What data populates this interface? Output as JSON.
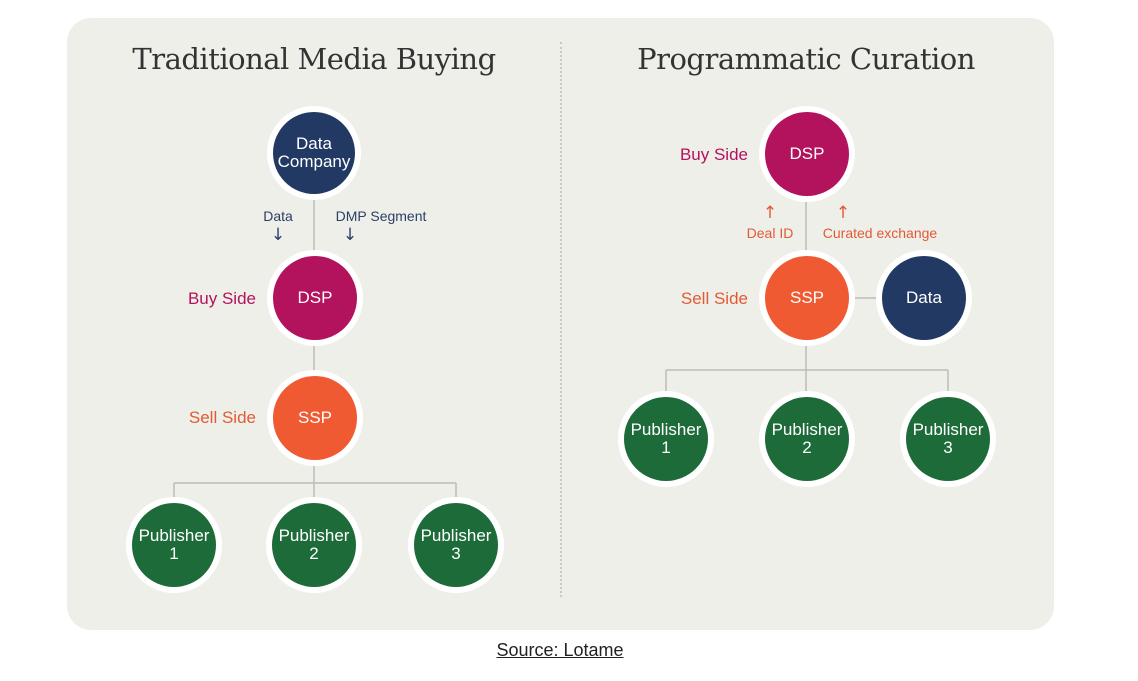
{
  "left": {
    "title": "Traditional Media Buying",
    "data_company": [
      "Data",
      "Company"
    ],
    "data_label": "Data",
    "dmp_label": "DMP Segment",
    "buy_side": "Buy Side",
    "dsp": "DSP",
    "sell_side": "Sell Side",
    "ssp": "SSP",
    "publishers": [
      {
        "line1": "Publisher",
        "line2": "1"
      },
      {
        "line1": "Publisher",
        "line2": "2"
      },
      {
        "line1": "Publisher",
        "line2": "3"
      }
    ]
  },
  "right": {
    "title": "Programmatic Curation",
    "buy_side": "Buy Side",
    "dsp": "DSP",
    "deal_id": "Deal ID",
    "curated": "Curated exchange",
    "sell_side": "Sell Side",
    "ssp": "SSP",
    "data": "Data",
    "publishers": [
      {
        "line1": "Publisher",
        "line2": "1"
      },
      {
        "line1": "Publisher",
        "line2": "2"
      },
      {
        "line1": "Publisher",
        "line2": "3"
      }
    ]
  },
  "source": "Source: Lotame",
  "colors": {
    "navy": "#223a63",
    "magenta": "#b3125d",
    "orange": "#f05a33",
    "green": "#1e6b3a",
    "panel": "#efefea"
  },
  "icons": {
    "down_arrow": "down-arrow-icon",
    "up_arrow": "up-arrow-icon"
  }
}
